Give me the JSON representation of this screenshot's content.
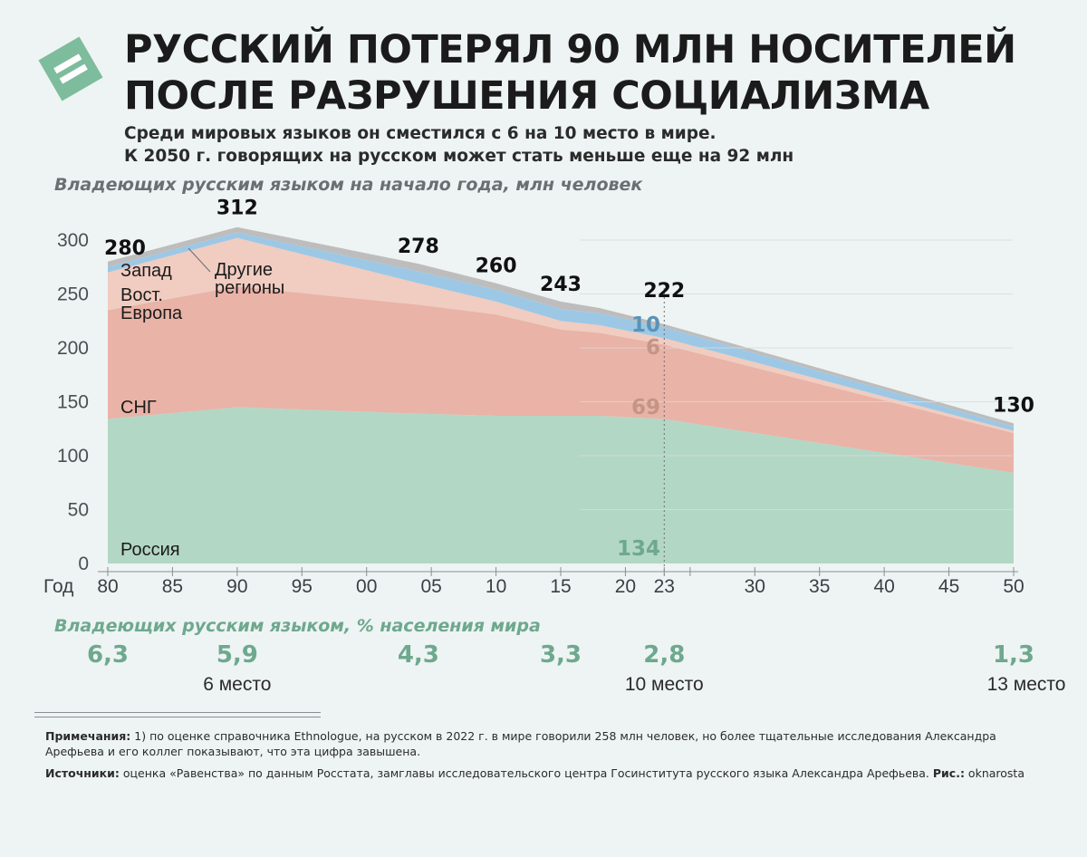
{
  "header": {
    "title_line1": "РУССКИЙ ПОТЕРЯЛ 90 МЛН НОСИТЕЛЕЙ",
    "title_line2": "ПОСЛЕ РАЗРУШЕНИЯ СОЦИАЛИЗМА",
    "subtitle_line1": "Среди мировых языков он сместился с 6 на 10 место в мире.",
    "subtitle_line2": "К 2050 г. говорящих на русском может стать меньше еще на 92 млн"
  },
  "colors": {
    "russia": "#b3d7c5",
    "cis": "#e9b3a7",
    "east_europe": "#f1ccc0",
    "other_regions": "#9cc8e6",
    "west": "#bdbdbd",
    "logo": "#7dbc9c",
    "share_text": "#6ea88e"
  },
  "chart_data": {
    "type": "area",
    "stacked": true,
    "title": "Владеющих русским языком на начало года, млн человек",
    "xlabel": "Год",
    "ylabel": "",
    "ylim": [
      0,
      300
    ],
    "yticks": [
      0,
      50,
      100,
      150,
      200,
      250,
      300
    ],
    "x": [
      1980,
      1990,
      2004,
      2010,
      2015,
      2018,
      2023,
      2050
    ],
    "xtick_values": [
      1980,
      1985,
      1990,
      1995,
      2000,
      2005,
      2010,
      2015,
      2020,
      2023,
      2030,
      2035,
      2040,
      2045,
      2050
    ],
    "xtick_labels": [
      "80",
      "85",
      "90",
      "95",
      "00",
      "05",
      "10",
      "15",
      "20",
      "23",
      "30",
      "35",
      "40",
      "45",
      "50"
    ],
    "grid": true,
    "marker_year": 2023,
    "series": [
      {
        "name": "Россия",
        "values": [
          134,
          145,
          139,
          137,
          137,
          137,
          134,
          84
        ]
      },
      {
        "name": "СНГ",
        "values": [
          101,
          112,
          101,
          94,
          80,
          77,
          69,
          37
        ]
      },
      {
        "name": "Вост. Европа",
        "values": [
          35,
          45,
          20,
          12,
          8,
          7,
          6,
          2
        ]
      },
      {
        "name": "Другие регионы",
        "values": [
          5,
          5,
          11,
          11,
          11,
          11,
          10,
          4
        ]
      },
      {
        "name": "Запад",
        "values": [
          5,
          5,
          7,
          6,
          7,
          5,
          3,
          3
        ]
      }
    ],
    "totals": [
      {
        "x": 1980,
        "label": "280"
      },
      {
        "x": 1990,
        "label": "312"
      },
      {
        "x": 2004,
        "label": "278"
      },
      {
        "x": 2010,
        "label": "260"
      },
      {
        "x": 2015,
        "label": "243"
      },
      {
        "x": 2023,
        "label": "222"
      },
      {
        "x": 2050,
        "label": "130"
      }
    ],
    "annotations_2023": [
      {
        "series": "Другие регионы",
        "label": "10"
      },
      {
        "series": "Вост. Европа",
        "label": "6"
      },
      {
        "series": "СНГ",
        "label": "69"
      },
      {
        "series": "Россия",
        "label": "134"
      }
    ],
    "series_labels": {
      "west": "Запад",
      "east_line1": "Вост.",
      "east_line2": "Европа",
      "other_line1": "Другие",
      "other_line2": "регионы",
      "cis": "СНГ",
      "russia": "Россия"
    }
  },
  "share": {
    "label": "Владеющих русским языком, % населения мира",
    "values": [
      {
        "year": 1980,
        "value": "6,3"
      },
      {
        "year": 1990,
        "value": "5,9"
      },
      {
        "year": 2004,
        "value": "4,3"
      },
      {
        "year": 2015,
        "value": "3,3"
      },
      {
        "year": 2023,
        "value": "2,8"
      },
      {
        "year": 2050,
        "value": "1,3"
      }
    ],
    "ranks": [
      {
        "year": 1990,
        "label": "6 место"
      },
      {
        "year": 2023,
        "label": "10 место"
      },
      {
        "year": 2050,
        "label": "13 место"
      }
    ]
  },
  "notes": {
    "notes_label": "Примечания:",
    "notes_text": " 1) по оценке справочника Ethnologue, на русском в 2022 г. в мире говорили 258 млн человек, но более тщательные исследования Александра Арефьева и его коллег показывают, что эта цифра завышена.",
    "sources_label": "Источники:",
    "sources_text": " оценка «Равенства» по данным Росстата, замглавы исследовательского центра Госинститута русского языка Александра Арефьева. ",
    "credit_label": "Рис.:",
    "credit_text": " oknarosta"
  }
}
